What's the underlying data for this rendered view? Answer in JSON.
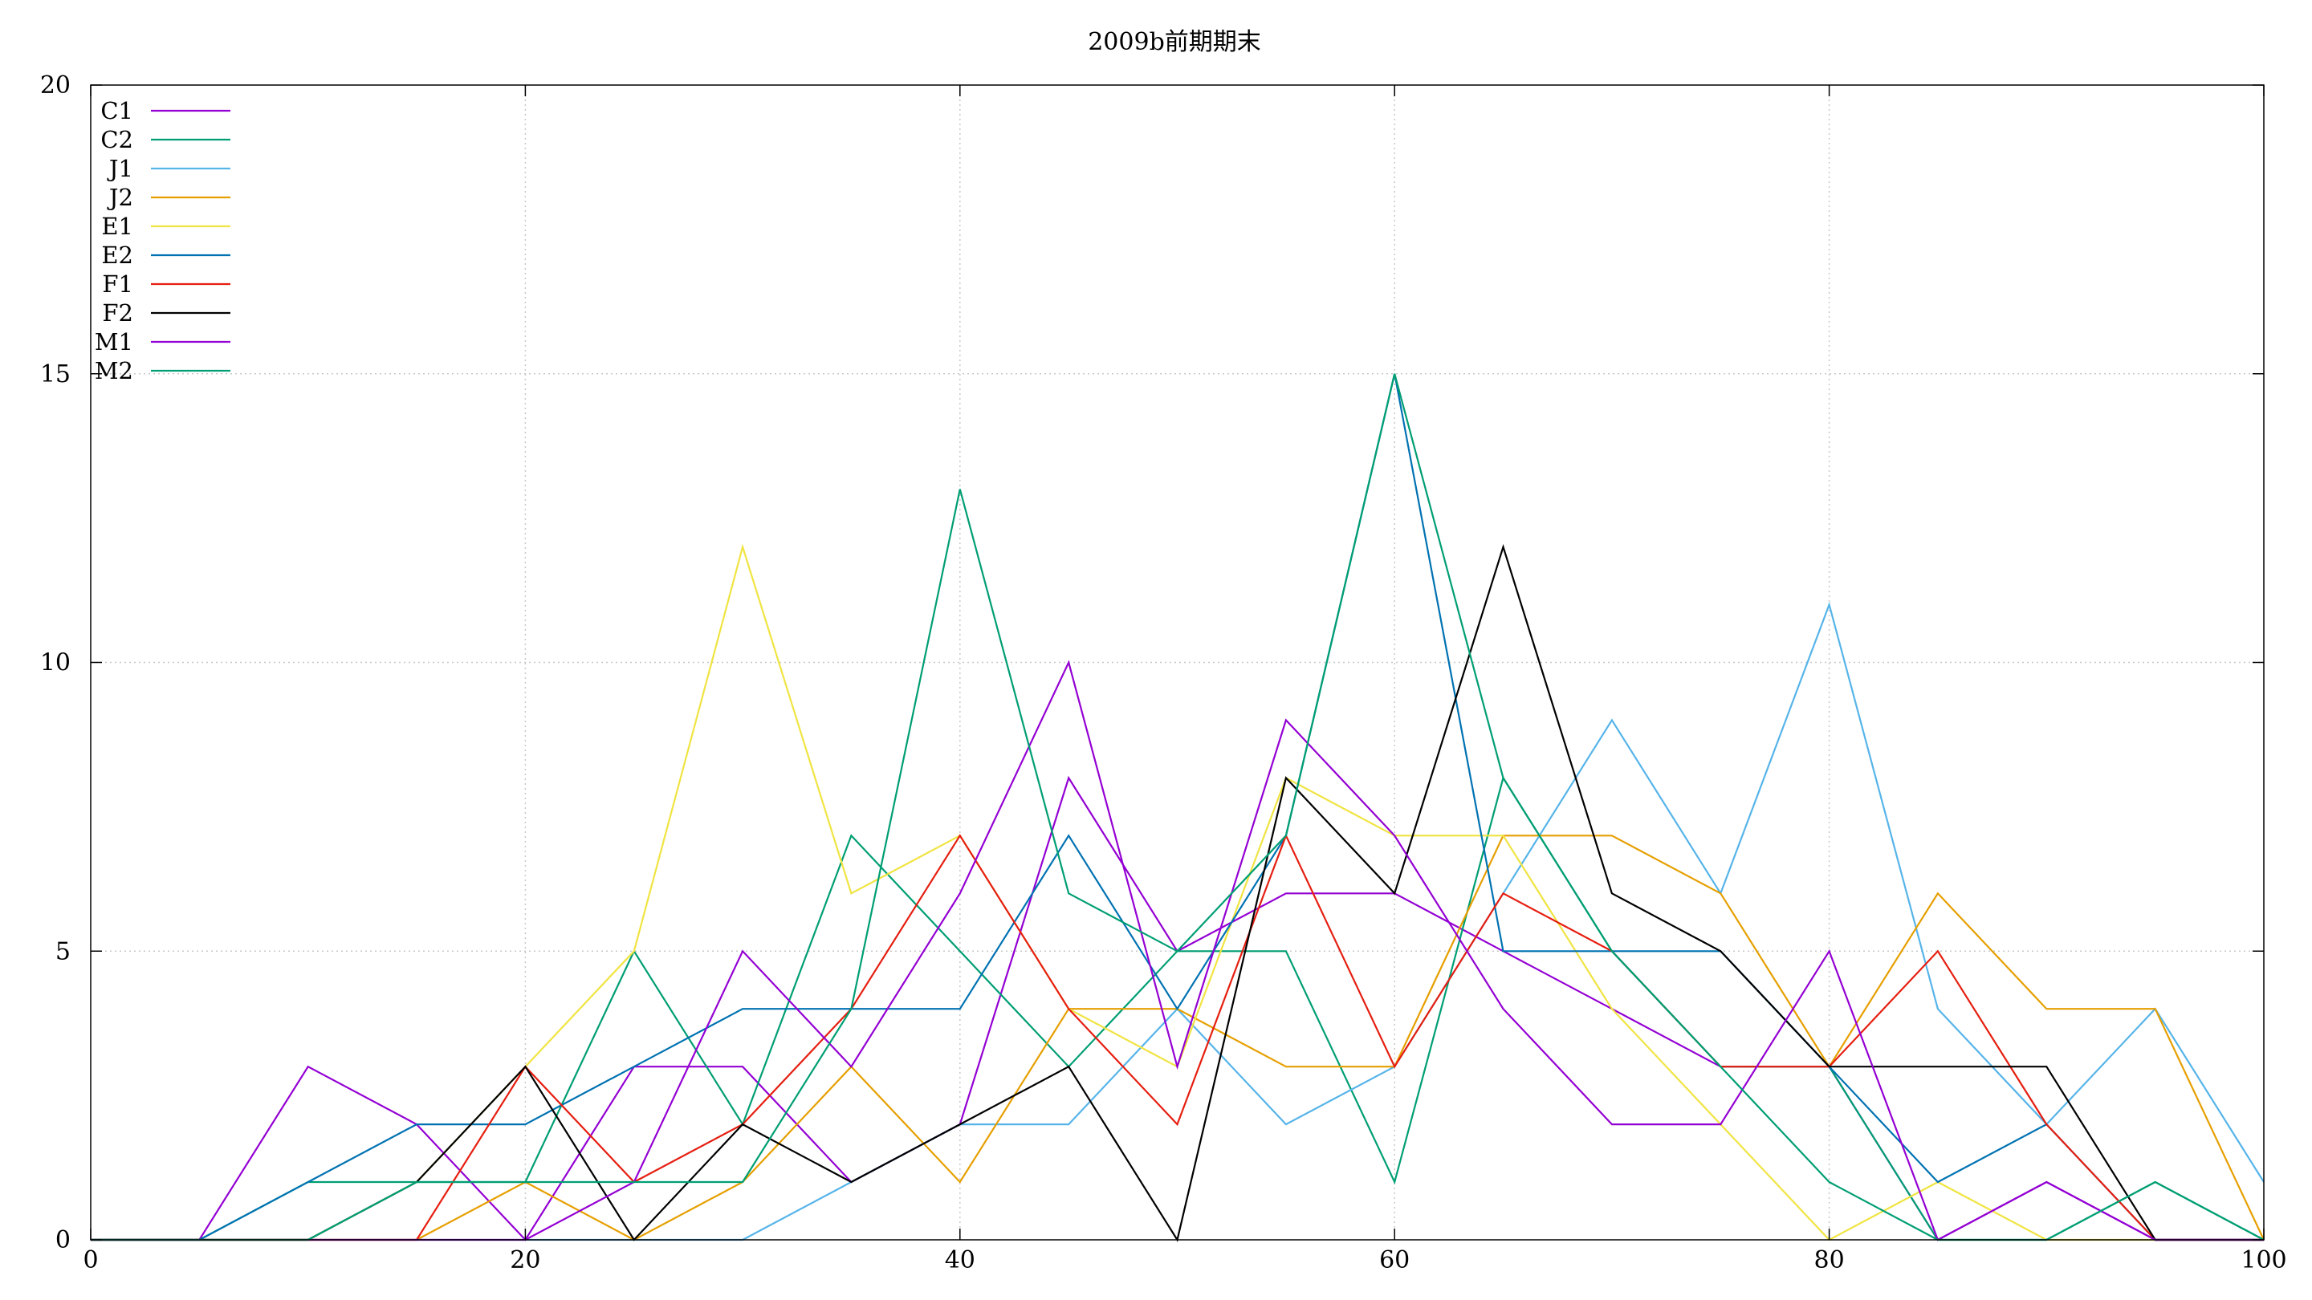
{
  "chart_data": {
    "type": "line",
    "title": "2009b前期期末",
    "xlabel": "",
    "ylabel": "",
    "xlim": [
      0,
      100
    ],
    "ylim": [
      0,
      20
    ],
    "x_ticks": [
      "0",
      "20",
      "40",
      "60",
      "80",
      "100"
    ],
    "y_ticks": [
      "0",
      "5",
      "10",
      "15",
      "20"
    ],
    "grid": true,
    "legend_position": "top-left",
    "x": [
      0,
      5,
      10,
      15,
      20,
      25,
      30,
      35,
      40,
      45,
      50,
      55,
      60,
      65,
      70,
      75,
      80,
      85,
      90,
      95,
      100
    ],
    "series": [
      {
        "name": "C1",
        "color": "#9400d3",
        "values": [
          0,
          0,
          3,
          2,
          0,
          3,
          3,
          1,
          2,
          8,
          5,
          6,
          6,
          5,
          4,
          3,
          3,
          0,
          1,
          0,
          0
        ]
      },
      {
        "name": "C2",
        "color": "#009e73",
        "values": [
          0,
          0,
          1,
          1,
          1,
          5,
          2,
          7,
          5,
          3,
          5,
          5,
          1,
          8,
          5,
          3,
          3,
          0,
          0,
          1,
          0
        ]
      },
      {
        "name": "J1",
        "color": "#56b4e9",
        "values": [
          0,
          0,
          0,
          0,
          0,
          0,
          0,
          1,
          2,
          2,
          4,
          2,
          3,
          6,
          9,
          6,
          11,
          4,
          2,
          4,
          1
        ]
      },
      {
        "name": "J2",
        "color": "#e69f00",
        "values": [
          0,
          0,
          0,
          0,
          1,
          0,
          1,
          3,
          1,
          4,
          4,
          3,
          3,
          7,
          7,
          6,
          3,
          6,
          4,
          4,
          0
        ]
      },
      {
        "name": "E1",
        "color": "#f0e442",
        "values": [
          0,
          0,
          0,
          1,
          3,
          5,
          12,
          6,
          7,
          4,
          3,
          8,
          7,
          7,
          4,
          2,
          0,
          1,
          0,
          0,
          0
        ]
      },
      {
        "name": "E2",
        "color": "#0072b2",
        "values": [
          0,
          0,
          1,
          2,
          2,
          3,
          4,
          4,
          4,
          7,
          4,
          7,
          15,
          5,
          5,
          5,
          3,
          1,
          2,
          0,
          0
        ]
      },
      {
        "name": "F1",
        "color": "#e51e10",
        "values": [
          0,
          0,
          0,
          0,
          3,
          1,
          2,
          4,
          7,
          4,
          2,
          7,
          3,
          6,
          5,
          3,
          3,
          5,
          2,
          0,
          0
        ]
      },
      {
        "name": "F2",
        "color": "#000000",
        "values": [
          0,
          0,
          0,
          1,
          3,
          0,
          2,
          1,
          2,
          3,
          0,
          8,
          6,
          12,
          6,
          5,
          3,
          3,
          3,
          0,
          0
        ]
      },
      {
        "name": "M1",
        "color": "#9400d3",
        "values": [
          0,
          0,
          0,
          0,
          0,
          1,
          5,
          3,
          6,
          10,
          3,
          9,
          7,
          4,
          2,
          2,
          5,
          0,
          1,
          0,
          0
        ]
      },
      {
        "name": "M2",
        "color": "#009e73",
        "values": [
          0,
          0,
          0,
          1,
          1,
          1,
          1,
          4,
          13,
          6,
          5,
          7,
          15,
          8,
          5,
          3,
          1,
          0,
          0,
          1,
          0
        ]
      }
    ]
  }
}
